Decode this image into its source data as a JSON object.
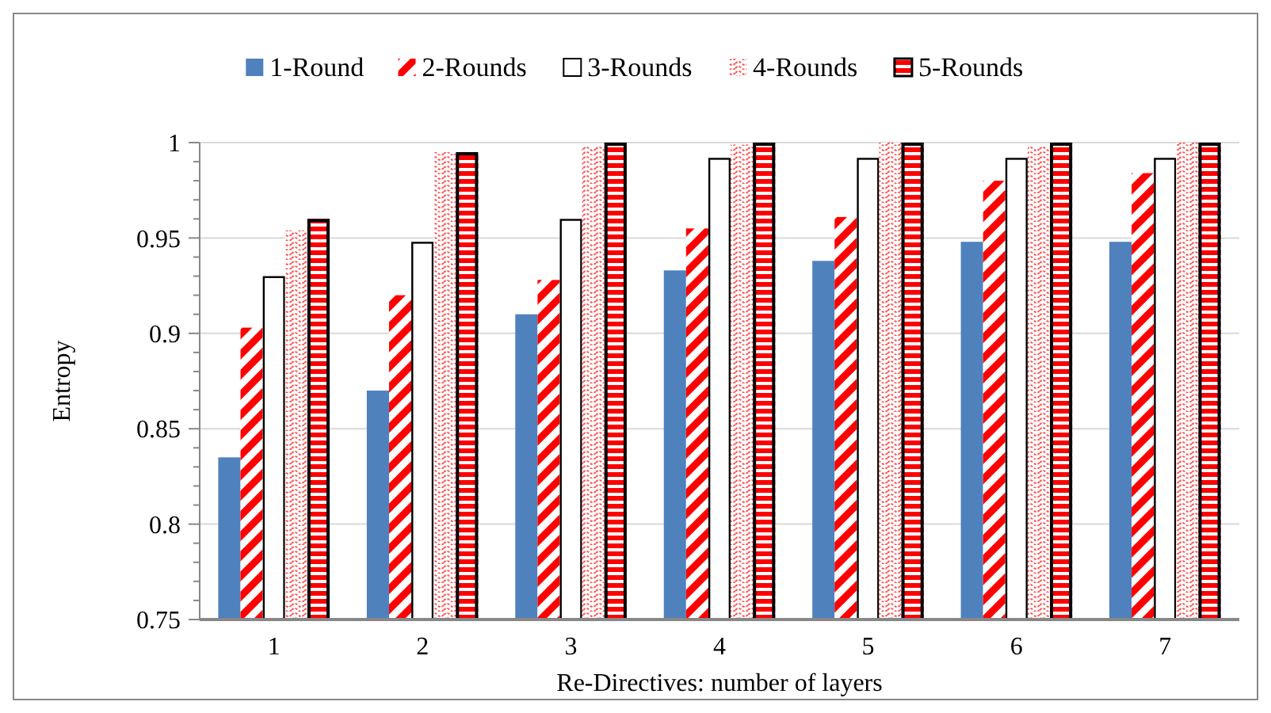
{
  "chart_data": {
    "type": "bar",
    "xlabel": "Re-Directives: number of layers",
    "ylabel": "Entropy",
    "categories": [
      "1",
      "2",
      "3",
      "4",
      "5",
      "6",
      "7"
    ],
    "series": [
      {
        "name": "1-Round",
        "color": "#4f81bd",
        "values": [
          0.835,
          0.87,
          0.91,
          0.933,
          0.938,
          0.948,
          0.948
        ]
      },
      {
        "name": "2-Rounds",
        "color": "#ff0000",
        "values": [
          0.903,
          0.92,
          0.928,
          0.955,
          0.961,
          0.98,
          0.984
        ]
      },
      {
        "name": "3-Rounds",
        "color": "#ffffff",
        "values": [
          0.93,
          0.948,
          0.96,
          0.992,
          0.992,
          0.992,
          0.992
        ]
      },
      {
        "name": "4-Rounds",
        "color": "#ff5050",
        "values": [
          0.954,
          0.995,
          0.998,
          0.999,
          1,
          0.998,
          1
        ]
      },
      {
        "name": "5-Rounds",
        "color": "#ff0000",
        "values": [
          0.96,
          0.995,
          1,
          1,
          1,
          1,
          1
        ]
      }
    ],
    "ylim": [
      0.75,
      1
    ],
    "yticks": [
      0.75,
      {
        "value": 0.76,
        "label": null
      },
      {
        "value": 0.77,
        "label": null
      },
      {
        "value": 0.78,
        "label": null
      },
      {
        "value": 0.79,
        "label": null
      },
      0.8,
      {
        "value": 0.81,
        "label": null
      },
      {
        "value": 0.82,
        "label": null
      },
      {
        "value": 0.83,
        "label": null
      },
      {
        "value": 0.84,
        "label": null
      },
      0.85,
      {
        "value": 0.86,
        "label": null
      },
      {
        "value": 0.87,
        "label": null
      },
      {
        "value": 0.88,
        "label": null
      },
      {
        "value": 0.89,
        "label": null
      },
      0.9,
      {
        "value": 0.91,
        "label": null
      },
      {
        "value": 0.92,
        "label": null
      },
      {
        "value": 0.93,
        "label": null
      },
      {
        "value": 0.94,
        "label": null
      },
      0.95,
      {
        "value": 0.96,
        "label": null
      },
      {
        "value": 0.97,
        "label": null
      },
      {
        "value": 0.98,
        "label": null
      },
      {
        "value": 0.99,
        "label": null
      },
      1
    ],
    "grid": "y",
    "legend": "top"
  }
}
